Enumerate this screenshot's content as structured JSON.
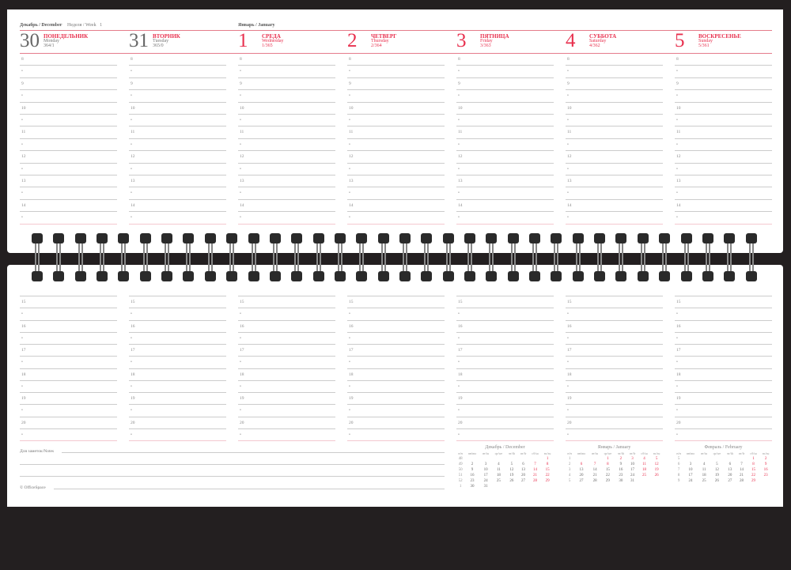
{
  "header": {
    "month_left": "Декабрь / December",
    "week_label": "Неделя / Week",
    "week_number": "1",
    "month_right": "Январь / January"
  },
  "days": [
    {
      "num": "30",
      "ru": "ПОНЕДЕЛЬНИК",
      "en": "Monday",
      "doy": "364/1",
      "red": false
    },
    {
      "num": "31",
      "ru": "ВТОРНИК",
      "en": "Tuesday",
      "doy": "365/0",
      "red": false
    },
    {
      "num": "1",
      "ru": "СРЕДА",
      "en": "Wednesday",
      "doy": "1/365",
      "red": true
    },
    {
      "num": "2",
      "ru": "ЧЕТВЕРГ",
      "en": "Thursday",
      "doy": "2/364",
      "red": true
    },
    {
      "num": "3",
      "ru": "ПЯТНИЦА",
      "en": "Friday",
      "doy": "3/363",
      "red": true
    },
    {
      "num": "4",
      "ru": "СУББОТА",
      "en": "Saturday",
      "doy": "4/362",
      "red": true
    },
    {
      "num": "5",
      "ru": "ВОСКРЕСЕНЬЕ",
      "en": "Sunday",
      "doy": "5/361",
      "red": true
    }
  ],
  "hours_top": [
    "8",
    "•",
    "9",
    "•",
    "10",
    "•",
    "11",
    "•",
    "12",
    "•",
    "13",
    "•",
    "14",
    "•"
  ],
  "hours_bottom": [
    "15",
    "•",
    "16",
    "•",
    "17",
    "•",
    "18",
    "•",
    "19",
    "•",
    "20",
    "•"
  ],
  "notes_label": "Для заметок/Notes",
  "copyright": "© OfficeSpace",
  "mini_header": [
    "н/н",
    "пн/mo",
    "вт/tu",
    "ср/we",
    "чт/th",
    "пт/fr",
    "сб/sa",
    "вс/su"
  ],
  "mini_calendars": [
    {
      "title": "Декабрь / December",
      "weeks": [
        [
          "48",
          "",
          "",
          "",
          "",
          "",
          "",
          "1"
        ],
        [
          "49",
          "2",
          "3",
          "4",
          "5",
          "6",
          "7",
          "8"
        ],
        [
          "50",
          "9",
          "10",
          "11",
          "12",
          "13",
          "14",
          "15"
        ],
        [
          "51",
          "16",
          "17",
          "18",
          "19",
          "20",
          "21",
          "22"
        ],
        [
          "52",
          "23",
          "24",
          "25",
          "26",
          "27",
          "28",
          "29"
        ],
        [
          "1",
          "30",
          "31",
          "",
          "",
          "",
          "",
          ""
        ]
      ],
      "red": []
    },
    {
      "title": "Январь / January",
      "weeks": [
        [
          "1",
          "",
          "",
          "1",
          "2",
          "3",
          "4",
          "5"
        ],
        [
          "2",
          "6",
          "7",
          "8",
          "9",
          "10",
          "11",
          "12"
        ],
        [
          "3",
          "13",
          "14",
          "15",
          "16",
          "17",
          "18",
          "19"
        ],
        [
          "4",
          "20",
          "21",
          "22",
          "23",
          "24",
          "25",
          "26"
        ],
        [
          "5",
          "27",
          "28",
          "29",
          "30",
          "31",
          "",
          ""
        ]
      ],
      "red": [
        "1",
        "2",
        "3",
        "6",
        "7",
        "8"
      ]
    },
    {
      "title": "Февраль / February",
      "weeks": [
        [
          "5",
          "",
          "",
          "",
          "",
          "",
          "1",
          "2"
        ],
        [
          "6",
          "3",
          "4",
          "5",
          "6",
          "7",
          "8",
          "9"
        ],
        [
          "7",
          "10",
          "11",
          "12",
          "13",
          "14",
          "15",
          "16"
        ],
        [
          "8",
          "17",
          "18",
          "19",
          "20",
          "21",
          "22",
          "23"
        ],
        [
          "9",
          "24",
          "25",
          "26",
          "27",
          "28",
          "29",
          ""
        ]
      ],
      "red": []
    }
  ],
  "colors": {
    "accent": "#e8304e",
    "binding": "#231f20"
  }
}
